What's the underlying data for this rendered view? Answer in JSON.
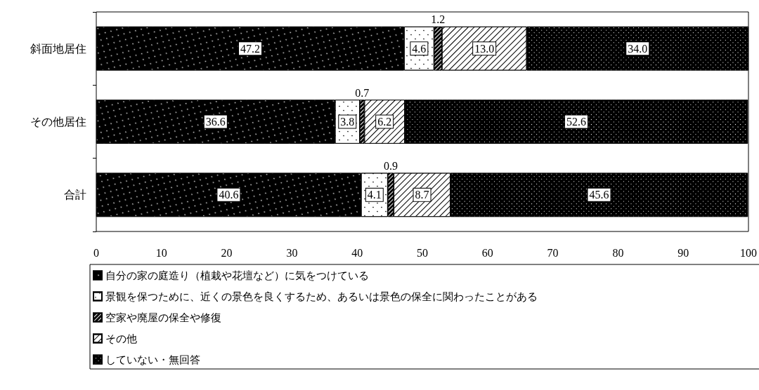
{
  "chart_data": {
    "type": "bar",
    "orientation": "horizontal",
    "stacked": true,
    "categories": [
      "斜面地居住",
      "その他居住",
      "合計"
    ],
    "series": [
      {
        "name": "自分の家の庭造り（植栽や花壇など）に気をつけている",
        "color": "#000000",
        "values": [
          47.2,
          36.6,
          40.6
        ],
        "value_labels": [
          "47.2",
          "36.6",
          "40.6"
        ]
      },
      {
        "name": "景観を保つために、近くの景色を良くするため、あるいは景色の保全に関わったことがある",
        "color": "#ffffff",
        "values": [
          4.6,
          3.8,
          4.1
        ],
        "value_labels": [
          "4.6",
          "3.8",
          "4.1"
        ]
      },
      {
        "name": "空家や廃屋の保全や修復",
        "color": "#000000",
        "values": [
          1.2,
          0.7,
          0.9
        ],
        "value_labels": [
          "1.2",
          "0.7",
          "0.9"
        ]
      },
      {
        "name": "その他",
        "color": "#ffffff",
        "values": [
          13.0,
          6.2,
          8.7
        ],
        "value_labels": [
          "13.0",
          "6.2",
          "8.7"
        ]
      },
      {
        "name": "していない・無回答",
        "color": "#000000",
        "values": [
          34.0,
          52.6,
          45.6
        ],
        "value_labels": [
          "34.0",
          "52.6",
          "45.6"
        ]
      }
    ],
    "xlim": [
      0,
      100
    ],
    "xticks": [
      0,
      10,
      20,
      30,
      40,
      50,
      60,
      70,
      80,
      90,
      100
    ],
    "grid": false,
    "legend": "bottom"
  }
}
